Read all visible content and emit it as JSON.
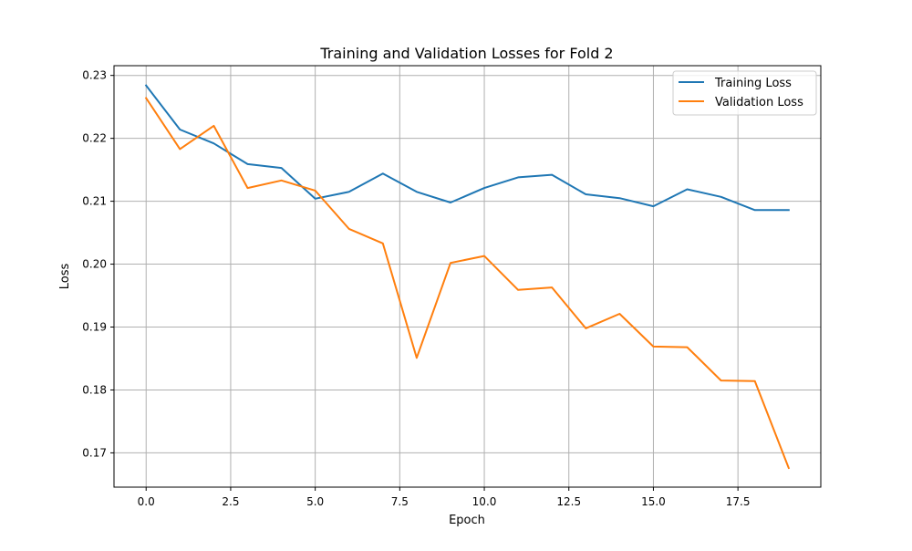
{
  "chart_data": {
    "type": "line",
    "title": "Training and Validation Losses for Fold 2",
    "xlabel": "Epoch",
    "ylabel": "Loss",
    "xlim": [
      -0.95,
      19.95
    ],
    "ylim": [
      0.16455,
      0.23155
    ],
    "x": [
      0,
      1,
      2,
      3,
      4,
      5,
      6,
      7,
      8,
      9,
      10,
      11,
      12,
      13,
      14,
      15,
      16,
      17,
      18,
      19
    ],
    "x_ticks": [
      0.0,
      2.5,
      5.0,
      7.5,
      10.0,
      12.5,
      15.0,
      17.5
    ],
    "x_tick_labels": [
      "0.0",
      "2.5",
      "5.0",
      "7.5",
      "10.0",
      "12.5",
      "15.0",
      "17.5"
    ],
    "y_ticks": [
      0.17,
      0.18,
      0.19,
      0.2,
      0.21,
      0.22,
      0.23
    ],
    "y_tick_labels": [
      "0.17",
      "0.18",
      "0.19",
      "0.20",
      "0.21",
      "0.22",
      "0.23"
    ],
    "grid": true,
    "legend_position": "top-right",
    "series": [
      {
        "name": "Training Loss",
        "color": "#1f77b4",
        "values": [
          0.2284,
          0.2214,
          0.2192,
          0.2159,
          0.2153,
          0.2104,
          0.2115,
          0.2144,
          0.2115,
          0.2098,
          0.2121,
          0.2138,
          0.2142,
          0.2111,
          0.2105,
          0.2092,
          0.2119,
          0.2107,
          0.2086,
          0.2086
        ]
      },
      {
        "name": "Validation Loss",
        "color": "#ff7f0e",
        "values": [
          0.2264,
          0.2183,
          0.222,
          0.2121,
          0.2133,
          0.2117,
          0.2056,
          0.2033,
          0.1851,
          0.2002,
          0.2013,
          0.1959,
          0.1963,
          0.1898,
          0.1921,
          0.1869,
          0.1868,
          0.1815,
          0.1814,
          0.1676
        ]
      }
    ]
  }
}
